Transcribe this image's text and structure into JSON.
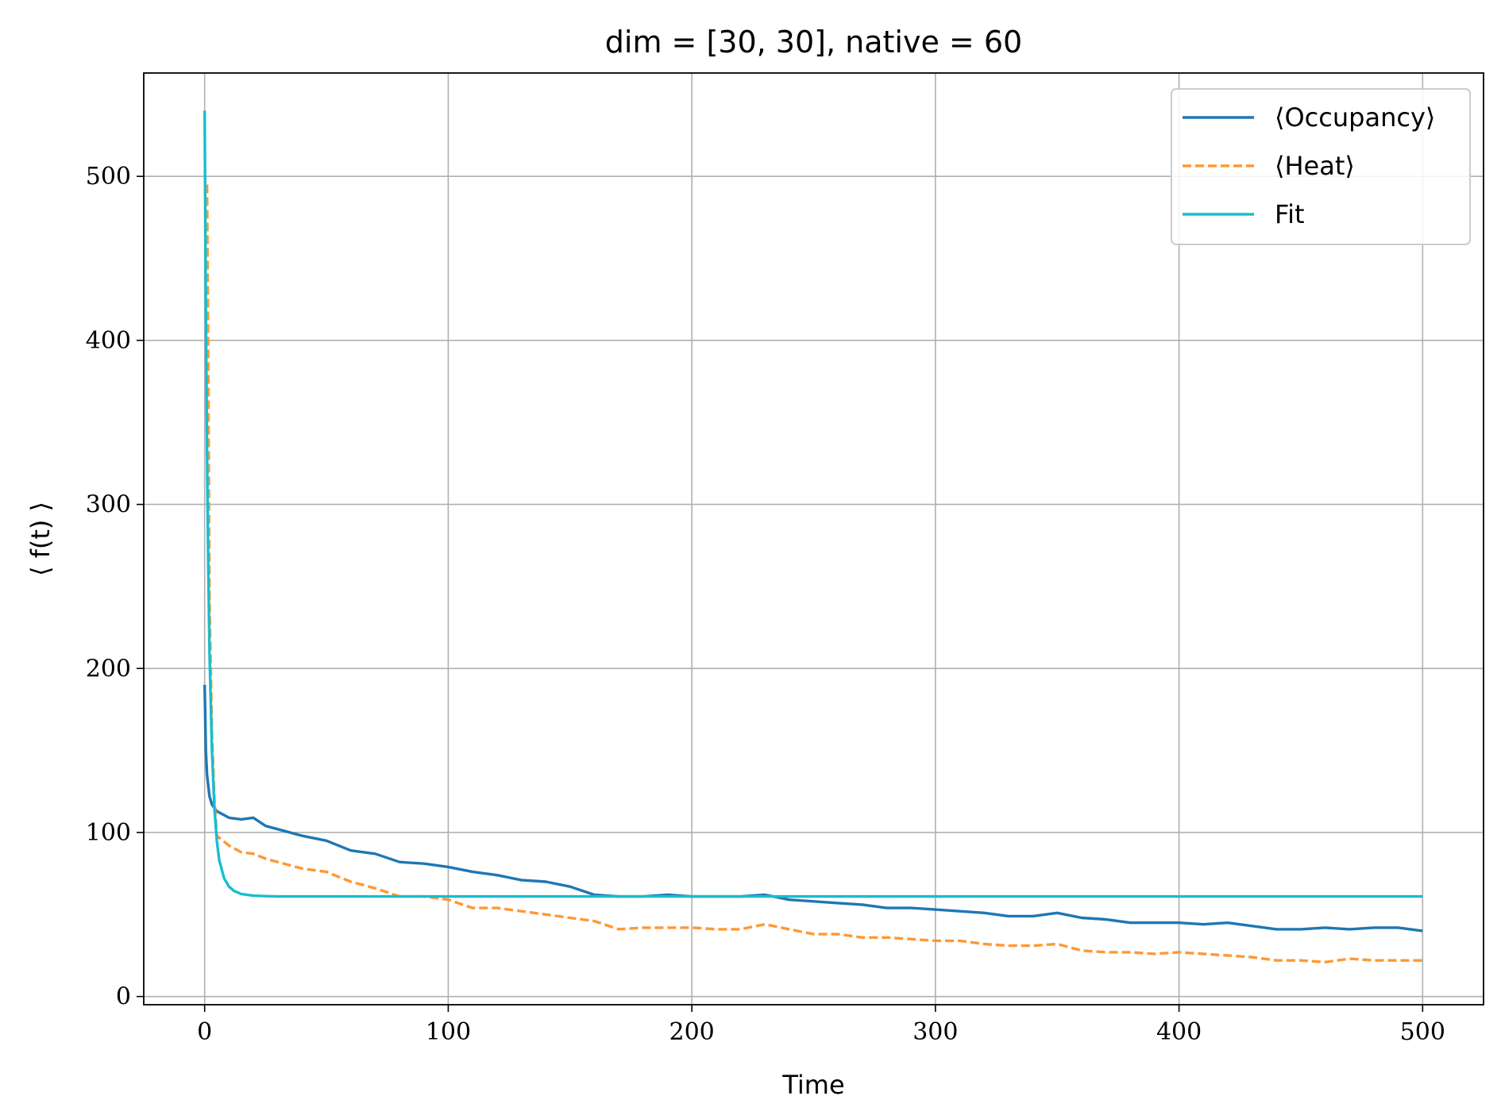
{
  "chart_data": {
    "type": "line",
    "title": "dim = [30, 30], native = 60",
    "xlabel": "Time",
    "ylabel": "⟨ f(t) ⟩",
    "xlim": [
      -25,
      525
    ],
    "ylim": [
      -5,
      563
    ],
    "xticks": [
      0,
      100,
      200,
      300,
      400,
      500
    ],
    "yticks": [
      0,
      100,
      200,
      300,
      400,
      500
    ],
    "grid": true,
    "legend_position": "top-right",
    "series": [
      {
        "name": "⟨Occupancy⟩",
        "color": "#1f77b4",
        "style": "solid",
        "x": [
          0,
          0.5,
          1,
          2,
          3,
          5,
          10,
          15,
          20,
          25,
          30,
          40,
          50,
          60,
          70,
          80,
          90,
          100,
          110,
          120,
          130,
          140,
          150,
          160,
          170,
          180,
          190,
          200,
          210,
          220,
          230,
          240,
          250,
          260,
          270,
          280,
          290,
          300,
          310,
          320,
          330,
          340,
          350,
          360,
          370,
          380,
          390,
          400,
          410,
          420,
          430,
          440,
          450,
          460,
          470,
          480,
          490,
          500
        ],
        "y": [
          190,
          150,
          135,
          122,
          117,
          113,
          109,
          108,
          109,
          104,
          102,
          98,
          95,
          89,
          87,
          82,
          81,
          79,
          76,
          74,
          71,
          70,
          67,
          62,
          61,
          61,
          62,
          61,
          61,
          61,
          62,
          59,
          58,
          57,
          56,
          54,
          54,
          53,
          52,
          51,
          49,
          49,
          51,
          48,
          47,
          45,
          45,
          45,
          44,
          45,
          43,
          41,
          41,
          42,
          41,
          42,
          42,
          40
        ]
      },
      {
        "name": "⟨Heat⟩",
        "color": "#ff9833",
        "style": "dashed",
        "x": [
          1,
          1.5,
          2,
          3,
          4,
          5,
          10,
          15,
          20,
          25,
          30,
          40,
          50,
          60,
          70,
          80,
          90,
          100,
          110,
          120,
          130,
          140,
          150,
          160,
          170,
          180,
          190,
          200,
          210,
          220,
          230,
          240,
          250,
          260,
          270,
          280,
          290,
          300,
          310,
          320,
          330,
          340,
          350,
          360,
          370,
          380,
          390,
          400,
          410,
          420,
          430,
          440,
          450,
          460,
          470,
          480,
          490,
          500
        ],
        "y": [
          495,
          380,
          240,
          160,
          120,
          98,
          92,
          88,
          87,
          84,
          82,
          78,
          76,
          70,
          66,
          61,
          61,
          59,
          54,
          54,
          52,
          50,
          48,
          46,
          41,
          42,
          42,
          42,
          41,
          41,
          44,
          41,
          38,
          38,
          36,
          36,
          35,
          34,
          34,
          32,
          31,
          31,
          32,
          28,
          27,
          27,
          26,
          27,
          26,
          25,
          24,
          22,
          22,
          21,
          23,
          22,
          22,
          22
        ]
      },
      {
        "name": "Fit",
        "color": "#17becf",
        "style": "solid",
        "x": [
          0,
          0.5,
          1,
          1.5,
          2,
          3,
          4,
          5,
          6,
          8,
          10,
          12,
          15,
          20,
          25,
          30,
          40,
          60,
          100,
          200,
          300,
          400,
          500
        ],
        "y": [
          540,
          420,
          330,
          260,
          210,
          150,
          115,
          95,
          83,
          72,
          67,
          64.5,
          62.5,
          61.5,
          61.2,
          61,
          61,
          61,
          61,
          61,
          61,
          61,
          61
        ]
      }
    ]
  }
}
